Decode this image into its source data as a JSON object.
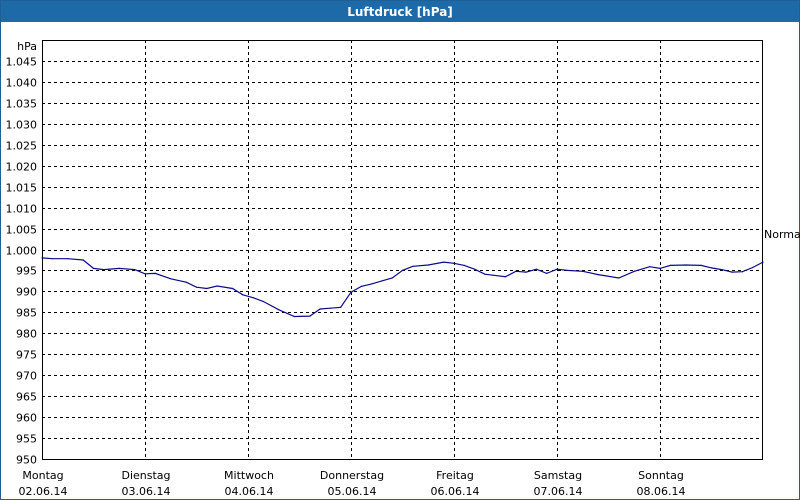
{
  "title": "Luftdruck [hPa]",
  "chart_data": {
    "type": "line",
    "title": "Luftdruck [hPa]",
    "ylabel": "hPa",
    "ylim": [
      950,
      1050
    ],
    "yticks": [
      950,
      955,
      960,
      965,
      970,
      975,
      980,
      985,
      990,
      995,
      1000,
      1005,
      1010,
      1015,
      1020,
      1025,
      1030,
      1035,
      1040,
      1045
    ],
    "ytick_labels": [
      "950",
      "955",
      "960",
      "965",
      "970",
      "975",
      "980",
      "985",
      "990",
      "995",
      "1.000",
      "1.005",
      "1.010",
      "1.015",
      "1.020",
      "1.025",
      "1.030",
      "1.035",
      "1.040",
      "1.045"
    ],
    "xlim": [
      0,
      7
    ],
    "xticks": [
      {
        "day": "Montag",
        "date": "02.06.14"
      },
      {
        "day": "Dienstag",
        "date": "03.06.14"
      },
      {
        "day": "Mittwoch",
        "date": "04.06.14"
      },
      {
        "day": "Donnerstag",
        "date": "05.06.14"
      },
      {
        "day": "Freitag",
        "date": "06.06.14"
      },
      {
        "day": "Samstag",
        "date": "07.06.14"
      },
      {
        "day": "Sonntag",
        "date": "08.06.14"
      }
    ],
    "reference_label": "Normal",
    "reference_value": 1003.7,
    "grid": true,
    "series": [
      {
        "color": "#0a0a8c",
        "x": [
          0,
          0.1,
          0.25,
          0.4,
          0.5,
          0.6,
          0.75,
          0.9,
          1.0,
          1.1,
          1.25,
          1.4,
          1.5,
          1.6,
          1.7,
          1.85,
          1.95,
          2.05,
          2.15,
          2.3,
          2.45,
          2.6,
          2.7,
          2.8,
          2.9,
          3.0,
          3.1,
          3.2,
          3.3,
          3.4,
          3.5,
          3.6,
          3.75,
          3.9,
          4.0,
          4.1,
          4.2,
          4.3,
          4.5,
          4.6,
          4.7,
          4.8,
          4.9,
          5.0,
          5.1,
          5.25,
          5.4,
          5.6,
          5.75,
          5.9,
          6.0,
          6.1,
          6.25,
          6.4,
          6.5,
          6.6,
          6.7,
          6.8,
          6.9,
          7.0
        ],
        "y": [
          998,
          997.8,
          997.8,
          997.5,
          995.5,
          995.2,
          995.5,
          995.2,
          994.2,
          994.3,
          993,
          992.2,
          991,
          990.7,
          991.3,
          990.7,
          989.2,
          988.5,
          987.6,
          985.6,
          984,
          984.1,
          985.8,
          986,
          986.2,
          989.8,
          991.2,
          991.8,
          992.5,
          993.2,
          995,
          996,
          996.3,
          997,
          996.7,
          996.2,
          995.3,
          994.1,
          993.5,
          994.8,
          994.6,
          995.3,
          994.3,
          995.3,
          995,
          994.8,
          994,
          993.2,
          994.8,
          995.9,
          995.5,
          996.2,
          996.3,
          996.2,
          995.6,
          995.2,
          994.6,
          994.7,
          995.7,
          997
        ]
      }
    ]
  }
}
